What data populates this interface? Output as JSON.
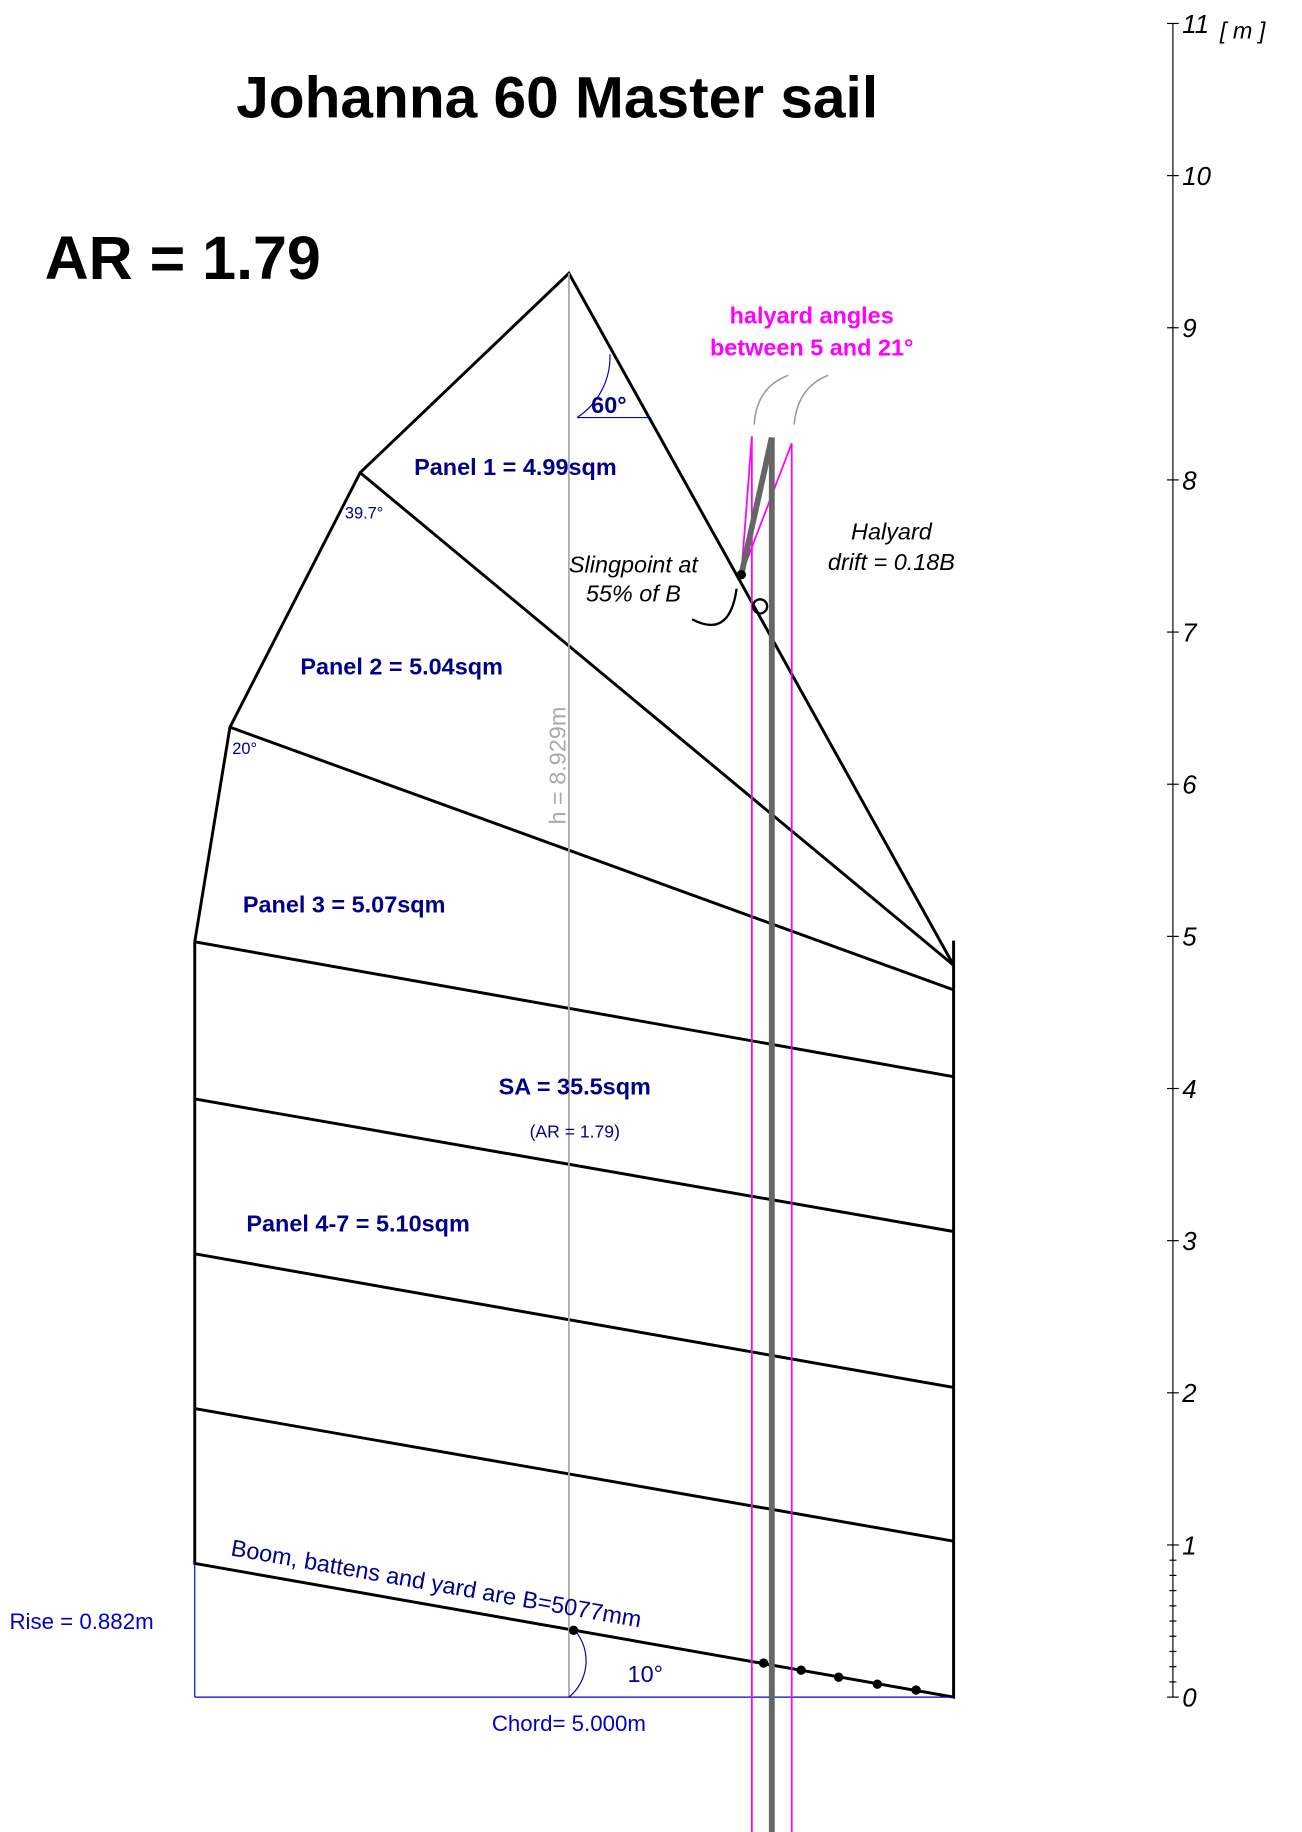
{
  "title": "Johanna 60 Master sail",
  "ar": "AR = 1.79",
  "halyard_note": [
    "halyard angles",
    "between 5 and 21°"
  ],
  "angle_peak": "60°",
  "angle_1": "39.7°",
  "angle_2": "20°",
  "angle_boom": "10°",
  "panels": [
    "Panel 1 = 4.99sqm",
    "Panel 2 = 5.04sqm",
    "Panel 3 = 5.07sqm",
    "Panel 4-7 = 5.10sqm"
  ],
  "sa": "SA = 35.5sqm",
  "sa_ar": "(AR = 1.79)",
  "height": "h = 8.929m",
  "slingpoint": [
    "Slingpoint at",
    "55% of B"
  ],
  "drift": [
    "Halyard",
    "drift = 0.18B"
  ],
  "boom": "Boom, battens and yard are B=5077mm",
  "rise": "Rise = 0.882m",
  "chord": "Chord= 5.000m",
  "scale": {
    "labels": [
      "0",
      "1",
      "2",
      "3",
      "4",
      "5",
      "6",
      "7",
      "8",
      "9",
      "10",
      "11"
    ],
    "unit": "[ m ]"
  }
}
